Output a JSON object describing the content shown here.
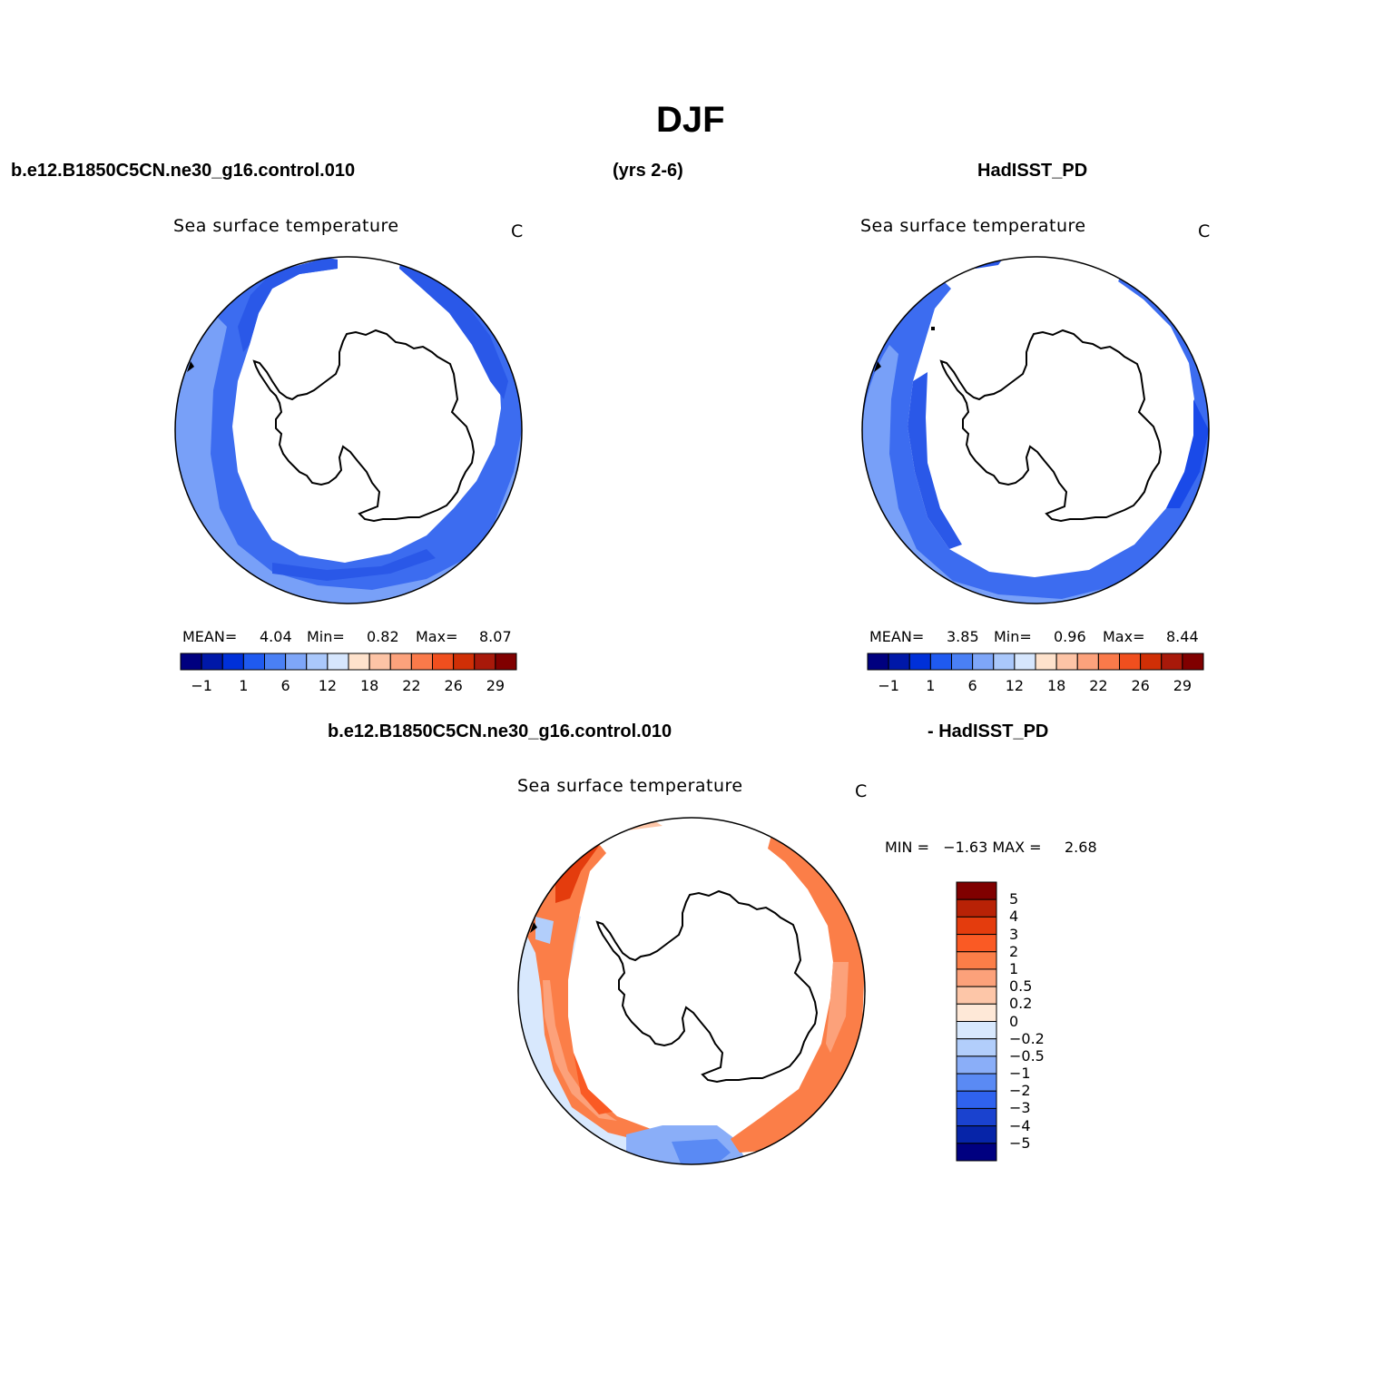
{
  "figure": {
    "title": "DJF",
    "case_name": "b.e12.B1850C5CN.ne30_g16.control.010",
    "years": "(yrs 2-6)",
    "obs_name": "HadISST_PD",
    "diff_case_name": "b.e12.B1850C5CN.ne30_g16.control.010",
    "diff_obs_name": "- HadISST_PD"
  },
  "panels": {
    "model": {
      "title": "Sea surface temperature",
      "units": "C",
      "mean_label": "MEAN=",
      "mean": "4.04",
      "min_label": "Min=",
      "min": "0.82",
      "max_label": "Max=",
      "max": "8.07"
    },
    "obs": {
      "title": "Sea surface temperature",
      "units": "C",
      "mean_label": "MEAN=",
      "mean": "3.85",
      "min_label": "Min=",
      "min": "0.96",
      "max_label": "Max=",
      "max": "8.44"
    },
    "diff": {
      "title": "Sea surface temperature",
      "units": "C",
      "minmax_text": "MIN =   −1.63 MAX =     2.68"
    }
  },
  "colorbars": {
    "abs": {
      "colors": [
        "#00007f",
        "#0018a8",
        "#0030d8",
        "#1f5af0",
        "#4a80f5",
        "#7ea6f8",
        "#aac8fb",
        "#d6e6fd",
        "#fee2cc",
        "#fdc4a6",
        "#fca27c",
        "#fa7a4a",
        "#f04f1e",
        "#d02f06",
        "#a8190a",
        "#800000"
      ],
      "tick_labels": [
        "−1",
        "1",
        "6",
        "12",
        "18",
        "22",
        "26",
        "29"
      ]
    },
    "diff": {
      "colors": [
        "#800000",
        "#b82206",
        "#e43c0d",
        "#fa5a24",
        "#fb7e48",
        "#fca17a",
        "#fdc6a8",
        "#fee8d7",
        "#d8e8fd",
        "#b2cefb",
        "#8aaef8",
        "#5a8af4",
        "#2f62ee",
        "#1a42cf",
        "#0624a8",
        "#000080"
      ],
      "tick_labels": [
        "5",
        "4",
        "3",
        "2",
        "1",
        "0.5",
        "0.2",
        "0",
        "−0.2",
        "−0.5",
        "−1",
        "−2",
        "−3",
        "−4",
        "−5"
      ]
    }
  },
  "colors": {
    "land_outline": "#000000",
    "ice_mask": "#ffffff"
  }
}
